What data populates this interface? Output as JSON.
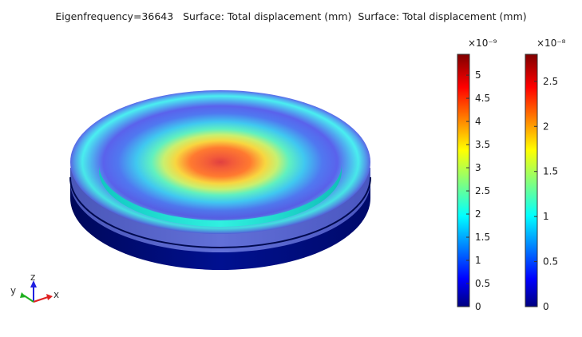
{
  "title": "Eigenfrequency=36643   Surface: Total displacement (mm)  Surface: Total displacement (mm)",
  "colorbars": [
    {
      "exponent": "×10⁻⁹",
      "ticks": [
        {
          "label": "0",
          "value": 0
        },
        {
          "label": "0.5",
          "value": 0.5
        },
        {
          "label": "1",
          "value": 1
        },
        {
          "label": "1.5",
          "value": 1.5
        },
        {
          "label": "2",
          "value": 2
        },
        {
          "label": "2.5",
          "value": 2.5
        },
        {
          "label": "3",
          "value": 3
        },
        {
          "label": "3.5",
          "value": 3.5
        },
        {
          "label": "4",
          "value": 4
        },
        {
          "label": "4.5",
          "value": 4.5
        },
        {
          "label": "5",
          "value": 5
        }
      ],
      "min": 0,
      "max": 5.45
    },
    {
      "exponent": "×10⁻⁸",
      "ticks": [
        {
          "label": "0",
          "value": 0
        },
        {
          "label": "0.5",
          "value": 0.5
        },
        {
          "label": "1",
          "value": 1
        },
        {
          "label": "1.5",
          "value": 1.5
        },
        {
          "label": "2",
          "value": 2
        },
        {
          "label": "2.5",
          "value": 2.5
        }
      ],
      "min": 0,
      "max": 2.8
    }
  ],
  "axes": {
    "x": "x",
    "y": "y",
    "z": "z"
  },
  "colors": {
    "x_axis": "#e02020",
    "y_axis": "#20b020",
    "z_axis": "#2020e0"
  }
}
